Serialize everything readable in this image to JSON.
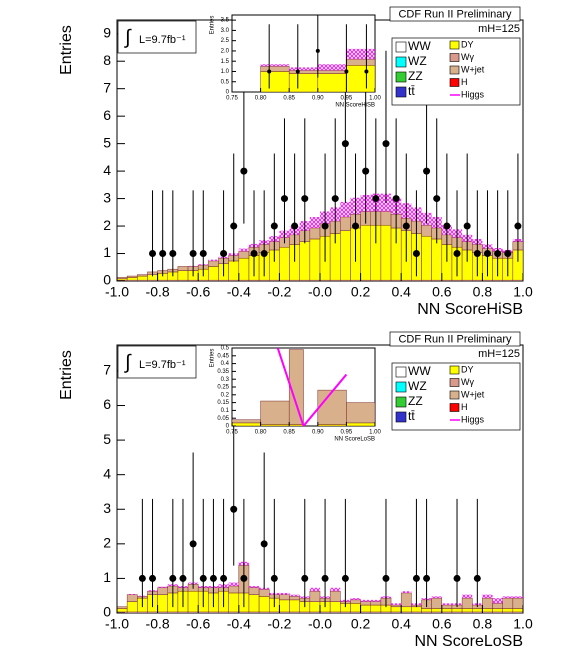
{
  "chart_data": [
    {
      "type": "histogram",
      "title": "CDF Run II Preliminary",
      "mass_label": "mH=125",
      "integral": "∫",
      "lumi": "L=9.7fb⁻¹",
      "xlabel": "NN ScoreHiSB",
      "ylabel": "Entries",
      "xlim": [
        -1,
        1
      ],
      "ylim": [
        0,
        9.5
      ],
      "xticks": [
        {
          "value": -1,
          "label": "-1.0"
        },
        -0.8,
        -0.6,
        -0.4,
        -0.2,
        {
          "value": 0,
          "label": "-0.0"
        },
        0.2,
        0.4,
        0.6,
        0.8,
        {
          "value": 1,
          "label": "1.0"
        }
      ],
      "yticks": [
        0,
        1,
        2,
        3,
        4,
        5,
        6,
        7,
        8,
        9
      ],
      "bins": [
        -1,
        -0.95,
        -0.9,
        -0.85,
        -0.8,
        -0.75,
        -0.7,
        -0.65,
        -0.6,
        -0.55,
        -0.5,
        -0.45,
        -0.4,
        -0.35,
        -0.3,
        -0.25,
        -0.2,
        -0.15,
        -0.1,
        -0.05,
        0,
        0.05,
        0.1,
        0.15,
        0.2,
        0.25,
        0.3,
        0.35,
        0.4,
        0.45,
        0.5,
        0.55,
        0.6,
        0.65,
        0.7,
        0.75,
        0.8,
        0.85,
        0.9,
        0.95,
        1
      ],
      "series": [
        {
          "name": "WW",
          "color": "#ffffff",
          "values": [
            0.03,
            0.03,
            0.03,
            0.03,
            0.03,
            0.03,
            0.03,
            0.03,
            0.03,
            0.03,
            0.03,
            0.03,
            0.03,
            0.03,
            0.03,
            0.03,
            0.03,
            0.03,
            0.03,
            0.03,
            0.03,
            0.03,
            0.03,
            0.03,
            0.03,
            0.03,
            0.03,
            0.03,
            0.03,
            0.03,
            0.03,
            0.03,
            0.03,
            0.03,
            0.03,
            0.03,
            0.03,
            0.03,
            0.03,
            0.03
          ]
        },
        {
          "name": "WZ",
          "color": "#00ffff"
        },
        {
          "name": "ZZ",
          "color": "#33cc33"
        },
        {
          "name": "tt̄",
          "color": "#3333cc"
        },
        {
          "name": "DY",
          "color": "#ffff00",
          "values": [
            0.05,
            0.1,
            0.15,
            0.2,
            0.25,
            0.3,
            0.35,
            0.35,
            0.4,
            0.5,
            0.6,
            0.7,
            0.8,
            0.9,
            1.0,
            1.1,
            1.2,
            1.3,
            1.4,
            1.5,
            1.6,
            1.7,
            1.8,
            1.9,
            2.0,
            2.0,
            2.0,
            1.9,
            1.8,
            1.7,
            1.6,
            1.5,
            1.3,
            1.2,
            1.1,
            1.0,
            0.9,
            0.8,
            0.8,
            1.1
          ]
        },
        {
          "name": "Wγ",
          "color": "#d99a8c"
        },
        {
          "name": "W+jet",
          "color": "#d8b08c",
          "values": [
            0.05,
            0.05,
            0.05,
            0.1,
            0.1,
            0.1,
            0.15,
            0.15,
            0.15,
            0.2,
            0.2,
            0.2,
            0.25,
            0.3,
            0.3,
            0.3,
            0.35,
            0.35,
            0.4,
            0.4,
            0.45,
            0.45,
            0.5,
            0.5,
            0.5,
            0.5,
            0.5,
            0.5,
            0.45,
            0.45,
            0.4,
            0.4,
            0.35,
            0.35,
            0.3,
            0.3,
            0.25,
            0.25,
            0.2,
            0.3
          ]
        },
        {
          "name": "H",
          "color": "#ff0000"
        },
        {
          "name": "Higgs",
          "color": "#ff00ff",
          "style": "line",
          "values": [
            0,
            0,
            0,
            0,
            0,
            0,
            0,
            0.02,
            0.03,
            0.05,
            0.05,
            0.08,
            0.1,
            0.12,
            0.15,
            0.2,
            0.25,
            0.3,
            0.35,
            0.4,
            0.45,
            0.5,
            0.55,
            0.6,
            0.6,
            0.65,
            0.65,
            0.6,
            0.55,
            0.5,
            0.45,
            0.4,
            0.35,
            0.3,
            0.25,
            0.2,
            0.15,
            0.12,
            0.1,
            0.1
          ]
        }
      ],
      "points": {
        "color": "#000000",
        "x": [
          -0.825,
          -0.775,
          -0.725,
          -0.625,
          -0.575,
          -0.475,
          -0.425,
          -0.375,
          -0.325,
          -0.275,
          -0.225,
          -0.175,
          -0.125,
          -0.075,
          0.025,
          0.075,
          0.125,
          0.175,
          0.225,
          0.275,
          0.325,
          0.375,
          0.425,
          0.475,
          0.525,
          0.575,
          0.625,
          0.675,
          0.725,
          0.775,
          0.825,
          0.875,
          0.925,
          0.975
        ],
        "values": [
          1,
          1,
          1,
          1,
          1,
          1,
          2,
          4,
          1,
          1,
          2,
          3,
          2,
          3,
          2,
          3,
          5,
          2,
          4,
          3,
          5,
          3,
          2,
          1,
          4,
          3,
          2,
          1,
          2,
          1,
          1,
          1,
          1,
          2
        ],
        "err_low": [
          0.83,
          0.83,
          0.83,
          0.83,
          0.83,
          0.83,
          1.3,
          1.91,
          0.83,
          0.83,
          1.3,
          1.63,
          1.3,
          1.63,
          1.3,
          1.63,
          2.16,
          1.3,
          1.91,
          1.63,
          2.16,
          1.63,
          1.3,
          0.83,
          1.91,
          1.63,
          1.3,
          0.83,
          1.3,
          0.83,
          0.83,
          0.83,
          0.83,
          1.3
        ],
        "err_high": [
          2.3,
          2.3,
          2.3,
          2.3,
          2.3,
          2.3,
          2.64,
          3.16,
          2.3,
          2.3,
          2.64,
          2.92,
          2.64,
          2.92,
          2.64,
          2.92,
          3.38,
          2.64,
          3.16,
          2.92,
          3.38,
          2.92,
          2.64,
          2.3,
          3.16,
          2.92,
          2.64,
          2.3,
          2.64,
          2.3,
          2.3,
          2.3,
          2.3,
          2.64
        ]
      }
    },
    {
      "type": "histogram",
      "xlabel": "NN ScoreHiSB",
      "ylabel": "Entries",
      "xlim": [
        0.75,
        1
      ],
      "ylim": [
        0,
        3.75
      ],
      "xticks": [
        0.75,
        {
          "value": 0.8,
          "label": "0.80"
        },
        0.85,
        {
          "value": 0.9,
          "label": "0.90"
        },
        0.95,
        {
          "value": 1,
          "label": "1.00"
        }
      ],
      "yticks": [
        0,
        0.5,
        {
          "value": 1,
          "label": "1.0"
        },
        1.5,
        {
          "value": 2,
          "label": "2.0"
        },
        2.5,
        {
          "value": 3,
          "label": "3.0"
        },
        3.5
      ],
      "bins": [
        0.75,
        0.8,
        0.85,
        0.9,
        0.95,
        1
      ],
      "series": [
        {
          "name": "DY",
          "color": "#ffff00",
          "values": [
            0,
            1.0,
            0.9,
            0.9,
            1.3
          ]
        },
        {
          "name": "W+jet",
          "color": "#d8b08c",
          "values": [
            0,
            0.25,
            0.15,
            0.15,
            0.3
          ]
        },
        {
          "name": "Higgs",
          "color": "#ff00ff",
          "style": "line",
          "values": [
            0,
            0.1,
            0.15,
            0.3,
            0.5
          ]
        }
      ],
      "points": {
        "color": "#000000",
        "x": [
          0.815,
          0.865,
          0.9,
          0.95,
          0.985
        ],
        "values": [
          1,
          1,
          2,
          1,
          1
        ],
        "err_low": [
          0.83,
          0.83,
          1.3,
          0.83,
          0.83
        ],
        "err_high": [
          2.3,
          2.3,
          2.64,
          2.3,
          2.3
        ]
      }
    },
    {
      "type": "histogram",
      "title": "CDF Run II Preliminary",
      "mass_label": "mH=125",
      "integral": "∫",
      "lumi": "L=9.7fb⁻¹",
      "xlabel": "NN ScoreLoSB",
      "ylabel": "Entries",
      "xlim": [
        -1,
        1
      ],
      "ylim": [
        0,
        7.75
      ],
      "xticks": [
        {
          "value": -1,
          "label": "-1.0"
        },
        -0.8,
        -0.6,
        -0.4,
        -0.2,
        {
          "value": 0,
          "label": "-0.0"
        },
        0.2,
        0.4,
        0.6,
        0.8,
        {
          "value": 1,
          "label": "1.0"
        }
      ],
      "yticks": [
        0,
        1,
        2,
        3,
        4,
        5,
        6,
        7
      ],
      "bins": [
        -1,
        -0.95,
        -0.9,
        -0.85,
        -0.8,
        -0.75,
        -0.7,
        -0.65,
        -0.6,
        -0.55,
        -0.5,
        -0.45,
        -0.4,
        -0.35,
        -0.3,
        -0.25,
        -0.2,
        -0.15,
        -0.1,
        -0.05,
        0,
        0.05,
        0.1,
        0.15,
        0.2,
        0.25,
        0.3,
        0.35,
        0.4,
        0.45,
        0.5,
        0.55,
        0.6,
        0.65,
        0.7,
        0.75,
        0.8,
        0.85,
        0.9,
        0.95,
        1
      ],
      "series": [
        {
          "name": "WW",
          "color": "#ffffff",
          "values": [
            0.03,
            0.03,
            0.03,
            0.03,
            0.03,
            0.03,
            0.03,
            0.03,
            0.03,
            0.03,
            0.03,
            0.03,
            0.03,
            0.03,
            0.03,
            0.03,
            0.03,
            0.03,
            0.03,
            0.03,
            0.03,
            0.03,
            0.03,
            0.03,
            0.03,
            0.03,
            0.03,
            0.03,
            0.03,
            0.03,
            0.03,
            0.03,
            0.03,
            0.03,
            0.03,
            0.03,
            0.03,
            0.03,
            0.03,
            0.03
          ]
        },
        {
          "name": "WZ",
          "color": "#00ffff"
        },
        {
          "name": "ZZ",
          "color": "#33cc33"
        },
        {
          "name": "tt̄",
          "color": "#3333cc"
        },
        {
          "name": "DY",
          "color": "#ffff00",
          "values": [
            0.1,
            0.3,
            0.4,
            0.5,
            0.5,
            0.55,
            0.6,
            0.6,
            0.6,
            0.55,
            0.6,
            0.55,
            0.55,
            0.5,
            0.45,
            0.4,
            0.35,
            0.35,
            0.3,
            0.3,
            0.3,
            0.3,
            0.25,
            0.25,
            0.2,
            0.2,
            0.2,
            0.15,
            0.15,
            0.15,
            0.1,
            0.1,
            0.1,
            0.1,
            0.1,
            0.1,
            0.1,
            0.1,
            0.1,
            0.1
          ]
        },
        {
          "name": "Wγ",
          "color": "#d99a8c"
        },
        {
          "name": "W+jet",
          "color": "#d8b08c",
          "values": [
            0.05,
            0.2,
            0.05,
            0.1,
            0.2,
            0.2,
            0.1,
            0.2,
            0.1,
            0.15,
            0.1,
            0.2,
            0.8,
            0.2,
            0.2,
            0.1,
            0.15,
            0.1,
            0.1,
            0.3,
            0.1,
            0.3,
            0.05,
            0.1,
            0.1,
            0.1,
            0.2,
            0.05,
            0.4,
            0.05,
            0.25,
            0.3,
            0.1,
            0.1,
            0.3,
            0.1,
            0.3,
            0.15,
            0.3,
            0.3
          ]
        },
        {
          "name": "H",
          "color": "#ff0000"
        },
        {
          "name": "Higgs",
          "color": "#ff00ff",
          "style": "line",
          "values": [
            0,
            0.02,
            0.02,
            0.03,
            0.03,
            0.05,
            0.05,
            0.05,
            0.05,
            0.05,
            0.1,
            0.1,
            0.1,
            0.05,
            0.05,
            0.05,
            0.05,
            0.05,
            0.05,
            0.1,
            0.05,
            0.1,
            0.05,
            0.05,
            0.05,
            0.05,
            0.05,
            0.05,
            0.05,
            0.05,
            0.05,
            0.05,
            0.05,
            0.05,
            0.1,
            0.05,
            0.1,
            0.15,
            0.05,
            0.05
          ]
        }
      ],
      "points": {
        "color": "#000000",
        "x": [
          -0.875,
          -0.825,
          -0.725,
          -0.675,
          -0.625,
          -0.575,
          -0.525,
          -0.475,
          -0.425,
          -0.375,
          -0.275,
          -0.225,
          -0.075,
          0.025,
          0.125,
          0.325,
          0.475,
          0.525,
          0.675,
          0.775
        ],
        "values": [
          1,
          1,
          1,
          1,
          2,
          1,
          1,
          1,
          3,
          1,
          2,
          1,
          1,
          1,
          1,
          1,
          1,
          1,
          1,
          1
        ],
        "err_low": [
          0.83,
          0.83,
          0.83,
          0.83,
          1.3,
          0.83,
          0.83,
          0.83,
          1.63,
          0.83,
          1.3,
          0.83,
          0.83,
          0.83,
          0.83,
          0.83,
          0.83,
          0.83,
          0.83,
          0.83
        ],
        "err_high": [
          2.3,
          2.3,
          2.3,
          2.3,
          2.64,
          2.3,
          2.3,
          2.3,
          2.92,
          2.3,
          2.64,
          2.3,
          2.3,
          2.3,
          2.3,
          2.3,
          2.3,
          2.3,
          2.3,
          2.3
        ]
      }
    },
    {
      "type": "histogram",
      "xlabel": "NN ScoreLoSB",
      "ylabel": "Entries",
      "xlim": [
        0.75,
        1
      ],
      "ylim": [
        0,
        0.5
      ],
      "xticks": [
        0.75,
        {
          "value": 0.8,
          "label": "0.80"
        },
        0.85,
        {
          "value": 0.9,
          "label": "0.90"
        },
        0.95,
        {
          "value": 1,
          "label": "1.00"
        }
      ],
      "yticks": [
        0,
        0.05,
        0.1,
        0.15,
        0.2,
        0.25,
        0.3,
        0.35,
        0.4,
        0.45,
        0.5
      ],
      "bins": [
        0.75,
        0.8,
        0.85,
        0.875,
        0.9,
        0.95,
        1
      ],
      "series": [
        {
          "name": "DY",
          "color": "#ffff00",
          "values": [
            0.02,
            0.01,
            0.01,
            0,
            0.01,
            0.02
          ]
        },
        {
          "name": "W+jet",
          "color": "#d8b08c",
          "values": [
            0.02,
            0.15,
            0.48,
            0,
            0.22,
            0.13
          ]
        },
        {
          "name": "Higgs",
          "color": "#ff00ff",
          "style": "line",
          "x": [
            0.83,
            0.875,
            0.95
          ],
          "values": [
            0.5,
            0,
            0.33
          ]
        }
      ]
    }
  ]
}
